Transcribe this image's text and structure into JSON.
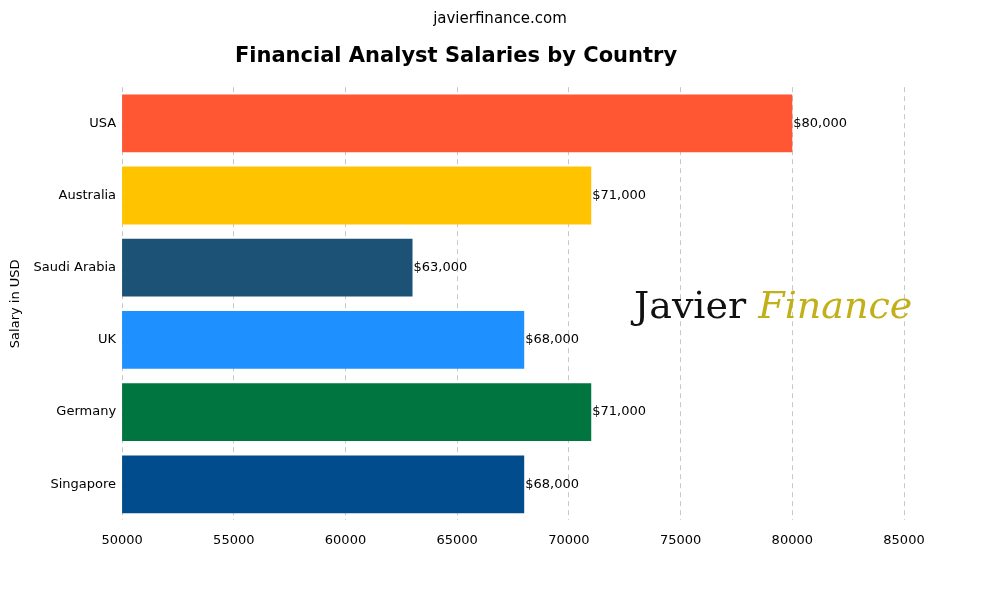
{
  "chart_data": {
    "type": "bar",
    "orientation": "horizontal",
    "subtitle": "javierfinance.com",
    "title": "Financial Analyst Salaries by Country",
    "y_label": "Salary in USD",
    "annotations": [
      "Javier",
      "Finance"
    ],
    "categories": [
      "USA",
      "Australia",
      "Saudi Arabia",
      "UK",
      "Germany",
      "Singapore"
    ],
    "values": [
      80000,
      71000,
      63000,
      68000,
      71000,
      68000
    ],
    "value_labels": [
      "$80,000",
      "$71,000",
      "$63,000",
      "$68,000",
      "$71,000",
      "$68,000"
    ],
    "colors": [
      "#ff5733",
      "#ffc300",
      "#1b5276",
      "#1e90ff",
      "#00753f",
      "#004c8c"
    ],
    "xlim": [
      50000,
      85000
    ],
    "xticks": [
      50000,
      55000,
      60000,
      65000,
      70000,
      75000,
      80000,
      85000
    ],
    "grid": true,
    "data_labels": true
  }
}
